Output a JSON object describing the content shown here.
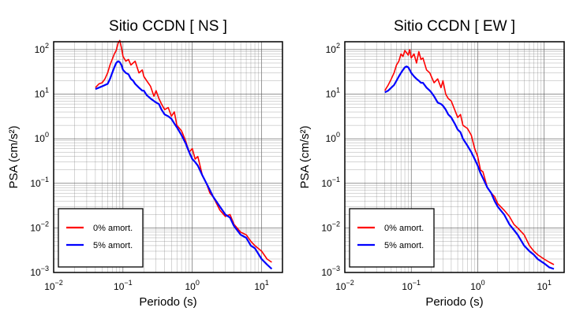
{
  "chart_data": [
    {
      "type": "line",
      "title": "Sitio CCDN [ NS ]",
      "xlabel": "Periodo (s)",
      "ylabel": "PSA (cm/s²)",
      "xscale": "log",
      "yscale": "log",
      "xlim": [
        0.01,
        20
      ],
      "ylim": [
        0.001,
        150
      ],
      "x_ticks": [
        {
          "base": "10",
          "exp": "−2",
          "value": 0.01
        },
        {
          "base": "10",
          "exp": "−1",
          "value": 0.1
        },
        {
          "base": "10",
          "exp": "0",
          "value": 1
        },
        {
          "base": "10",
          "exp": "1",
          "value": 10
        }
      ],
      "y_ticks": [
        {
          "base": "10",
          "exp": "−3",
          "value": 0.001
        },
        {
          "base": "10",
          "exp": "−2",
          "value": 0.01
        },
        {
          "base": "10",
          "exp": "−1",
          "value": 0.1
        },
        {
          "base": "10",
          "exp": "0",
          "value": 1
        },
        {
          "base": "10",
          "exp": "1",
          "value": 10
        },
        {
          "base": "10",
          "exp": "2",
          "value": 100
        }
      ],
      "grid": true,
      "legend_position": "bottom-left",
      "series": [
        {
          "name": "0% amort.",
          "color": "#ff0000",
          "x": [
            0.04,
            0.045,
            0.05,
            0.055,
            0.06,
            0.065,
            0.07,
            0.075,
            0.08,
            0.085,
            0.09,
            0.095,
            0.1,
            0.11,
            0.12,
            0.13,
            0.14,
            0.15,
            0.17,
            0.19,
            0.2,
            0.22,
            0.25,
            0.28,
            0.3,
            0.33,
            0.36,
            0.4,
            0.45,
            0.5,
            0.55,
            0.6,
            0.7,
            0.8,
            0.9,
            1.0,
            1.1,
            1.2,
            1.4,
            1.6,
            1.8,
            2.0,
            2.5,
            3.0,
            3.5,
            4.0,
            5.0,
            6.0,
            7.0,
            8.0,
            10.0,
            12.0,
            14.0
          ],
          "y": [
            14,
            17,
            18,
            22,
            30,
            45,
            60,
            80,
            95,
            140,
            160,
            110,
            70,
            55,
            60,
            45,
            50,
            55,
            30,
            35,
            25,
            20,
            15,
            9,
            12,
            8,
            6,
            4.5,
            5,
            3.2,
            4,
            2,
            1.5,
            0.9,
            0.5,
            0.6,
            0.35,
            0.4,
            0.15,
            0.1,
            0.06,
            0.05,
            0.025,
            0.018,
            0.02,
            0.012,
            0.008,
            0.007,
            0.005,
            0.004,
            0.003,
            0.002,
            0.0017
          ]
        },
        {
          "name": "5% amort.",
          "color": "#0000ff",
          "x": [
            0.04,
            0.045,
            0.05,
            0.055,
            0.06,
            0.065,
            0.07,
            0.075,
            0.08,
            0.085,
            0.09,
            0.095,
            0.1,
            0.11,
            0.12,
            0.13,
            0.14,
            0.15,
            0.17,
            0.19,
            0.2,
            0.22,
            0.25,
            0.28,
            0.3,
            0.33,
            0.36,
            0.4,
            0.45,
            0.5,
            0.55,
            0.6,
            0.7,
            0.8,
            0.9,
            1.0,
            1.1,
            1.2,
            1.4,
            1.6,
            1.8,
            2.0,
            2.5,
            3.0,
            3.5,
            4.0,
            5.0,
            6.0,
            7.0,
            8.0,
            10.0,
            12.0,
            14.0
          ],
          "y": [
            13,
            14,
            15,
            16,
            17,
            22,
            30,
            40,
            50,
            55,
            52,
            45,
            35,
            30,
            28,
            22,
            20,
            17,
            14,
            12,
            12,
            9.5,
            8,
            7,
            6.5,
            6,
            4.5,
            3.5,
            3.2,
            2.8,
            2.2,
            1.8,
            1.2,
            0.8,
            0.5,
            0.35,
            0.3,
            0.25,
            0.15,
            0.1,
            0.07,
            0.05,
            0.03,
            0.02,
            0.017,
            0.011,
            0.007,
            0.006,
            0.004,
            0.0035,
            0.002,
            0.0015,
            0.0012
          ]
        }
      ]
    },
    {
      "type": "line",
      "title": "Sitio CCDN [ EW ]",
      "xlabel": "Periodo (s)",
      "ylabel": "PSA (cm/s²)",
      "xscale": "log",
      "yscale": "log",
      "xlim": [
        0.01,
        20
      ],
      "ylim": [
        0.001,
        150
      ],
      "x_ticks": [
        {
          "base": "10",
          "exp": "−2",
          "value": 0.01
        },
        {
          "base": "10",
          "exp": "−1",
          "value": 0.1
        },
        {
          "base": "10",
          "exp": "0",
          "value": 1
        },
        {
          "base": "10",
          "exp": "1",
          "value": 10
        }
      ],
      "y_ticks": [
        {
          "base": "10",
          "exp": "−3",
          "value": 0.001
        },
        {
          "base": "10",
          "exp": "−2",
          "value": 0.01
        },
        {
          "base": "10",
          "exp": "−1",
          "value": 0.1
        },
        {
          "base": "10",
          "exp": "0",
          "value": 1
        },
        {
          "base": "10",
          "exp": "1",
          "value": 10
        },
        {
          "base": "10",
          "exp": "2",
          "value": 100
        }
      ],
      "grid": true,
      "legend_position": "bottom-left",
      "series": [
        {
          "name": "0% amort.",
          "color": "#ff0000",
          "x": [
            0.04,
            0.045,
            0.05,
            0.055,
            0.06,
            0.065,
            0.07,
            0.075,
            0.08,
            0.085,
            0.09,
            0.095,
            0.1,
            0.11,
            0.12,
            0.13,
            0.14,
            0.15,
            0.17,
            0.19,
            0.2,
            0.22,
            0.25,
            0.28,
            0.3,
            0.33,
            0.36,
            0.4,
            0.45,
            0.5,
            0.55,
            0.6,
            0.7,
            0.8,
            0.9,
            1.0,
            1.1,
            1.2,
            1.4,
            1.6,
            1.8,
            2.0,
            2.5,
            3.0,
            3.5,
            4.0,
            5.0,
            6.0,
            7.0,
            8.0,
            10.0,
            12.0,
            14.0
          ],
          "y": [
            12,
            16,
            22,
            30,
            45,
            55,
            80,
            70,
            95,
            85,
            75,
            100,
            65,
            80,
            50,
            90,
            60,
            65,
            35,
            30,
            25,
            18,
            22,
            14,
            20,
            10,
            8,
            7,
            4.5,
            3,
            3.5,
            2,
            1.7,
            1.2,
            0.6,
            0.4,
            0.2,
            0.18,
            0.08,
            0.06,
            0.05,
            0.035,
            0.025,
            0.018,
            0.012,
            0.01,
            0.007,
            0.004,
            0.003,
            0.0025,
            0.002,
            0.0017,
            0.0015
          ]
        },
        {
          "name": "5% amort.",
          "color": "#0000ff",
          "x": [
            0.04,
            0.045,
            0.05,
            0.055,
            0.06,
            0.065,
            0.07,
            0.075,
            0.08,
            0.085,
            0.09,
            0.095,
            0.1,
            0.11,
            0.12,
            0.13,
            0.14,
            0.15,
            0.17,
            0.19,
            0.2,
            0.22,
            0.25,
            0.28,
            0.3,
            0.33,
            0.36,
            0.4,
            0.45,
            0.5,
            0.55,
            0.6,
            0.7,
            0.8,
            0.9,
            1.0,
            1.1,
            1.2,
            1.4,
            1.6,
            1.8,
            2.0,
            2.5,
            3.0,
            3.5,
            4.0,
            5.0,
            6.0,
            7.0,
            8.0,
            10.0,
            12.0,
            14.0
          ],
          "y": [
            11,
            12,
            14,
            16,
            20,
            25,
            30,
            35,
            40,
            42,
            40,
            35,
            30,
            25,
            22,
            20,
            18,
            18,
            14,
            12,
            11,
            9,
            6.5,
            6,
            5.5,
            4.5,
            3.5,
            3,
            2.2,
            1.6,
            1.4,
            1.0,
            0.7,
            0.5,
            0.35,
            0.25,
            0.17,
            0.13,
            0.08,
            0.06,
            0.04,
            0.03,
            0.02,
            0.012,
            0.009,
            0.007,
            0.004,
            0.003,
            0.0025,
            0.002,
            0.0016,
            0.0013,
            0.0012
          ]
        }
      ]
    }
  ]
}
